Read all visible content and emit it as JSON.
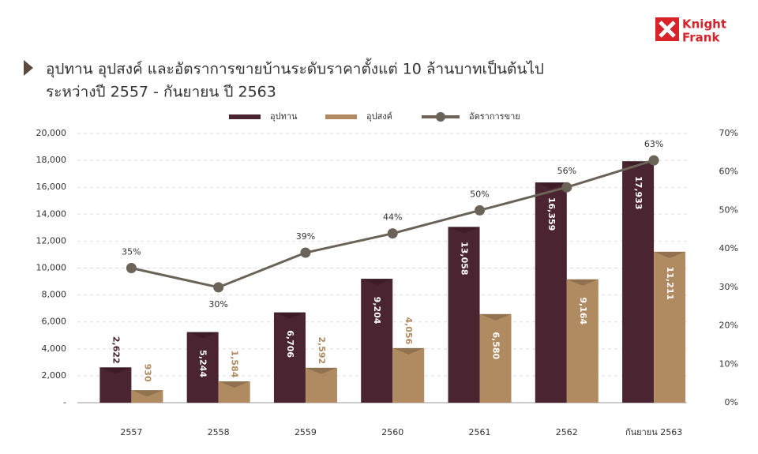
{
  "logo": [
    "Knight",
    "Frank"
  ],
  "chart_data": {
    "type": "bar-line",
    "title": "อุปทาน อุปสงค์ และอัตราการขายบ้านระดับราคาตั้งแต่ 10 ล้านบาทเป็นต้นไป",
    "subtitle": "ระหว่างปี 2557 - กันยายน ปี 2563",
    "categories": [
      "2557",
      "2558",
      "2559",
      "2560",
      "2561",
      "2562",
      "กันยายน 2563"
    ],
    "series": [
      {
        "name": "อุปทาน",
        "type": "bar",
        "color": "#4a2430",
        "label_color": "#ffffff",
        "values": [
          2622,
          5244,
          6706,
          9204,
          13058,
          16359,
          17933
        ],
        "value_labels": [
          "2,622",
          "5,244",
          "6,706",
          "9,204",
          "13,058",
          "16,359",
          "17,933"
        ]
      },
      {
        "name": "อุปสงค์",
        "type": "bar",
        "color": "#b08b62",
        "label_color": "#ffffff",
        "values": [
          930,
          1584,
          2592,
          4056,
          6580,
          9164,
          11211
        ],
        "value_labels": [
          "930",
          "1,584",
          "2,592",
          "4,056",
          "6,580",
          "9,164",
          "11,211"
        ]
      },
      {
        "name": "อัตราการขาย",
        "type": "line",
        "axis": "y2",
        "color": "#6b6358",
        "values": [
          35,
          30,
          39,
          44,
          50,
          56,
          63
        ],
        "value_labels": [
          "35%",
          "30%",
          "39%",
          "44%",
          "50%",
          "56%",
          "63%"
        ]
      }
    ],
    "ylim": [
      0,
      20000
    ],
    "yticks": [
      {
        "value": 0,
        "label": "-"
      },
      {
        "value": 2000,
        "label": "2,000"
      },
      {
        "value": 4000,
        "label": "4,000"
      },
      {
        "value": 6000,
        "label": "6,000"
      },
      {
        "value": 8000,
        "label": "8,000"
      },
      {
        "value": 10000,
        "label": "10,000"
      },
      {
        "value": 12000,
        "label": "12,000"
      },
      {
        "value": 14000,
        "label": "14,000"
      },
      {
        "value": 16000,
        "label": "16,000"
      },
      {
        "value": 18000,
        "label": "18,000"
      },
      {
        "value": 20000,
        "label": "20,000"
      }
    ],
    "y2lim": [
      0,
      70
    ],
    "y2ticks": [
      {
        "value": 0,
        "label": "0%"
      },
      {
        "value": 10,
        "label": "10%"
      },
      {
        "value": 20,
        "label": "20%"
      },
      {
        "value": 30,
        "label": "30%"
      },
      {
        "value": 40,
        "label": "40%"
      },
      {
        "value": 50,
        "label": "50%"
      },
      {
        "value": 60,
        "label": "60%"
      },
      {
        "value": 70,
        "label": "70%"
      }
    ],
    "grid": true,
    "legend": "top"
  }
}
